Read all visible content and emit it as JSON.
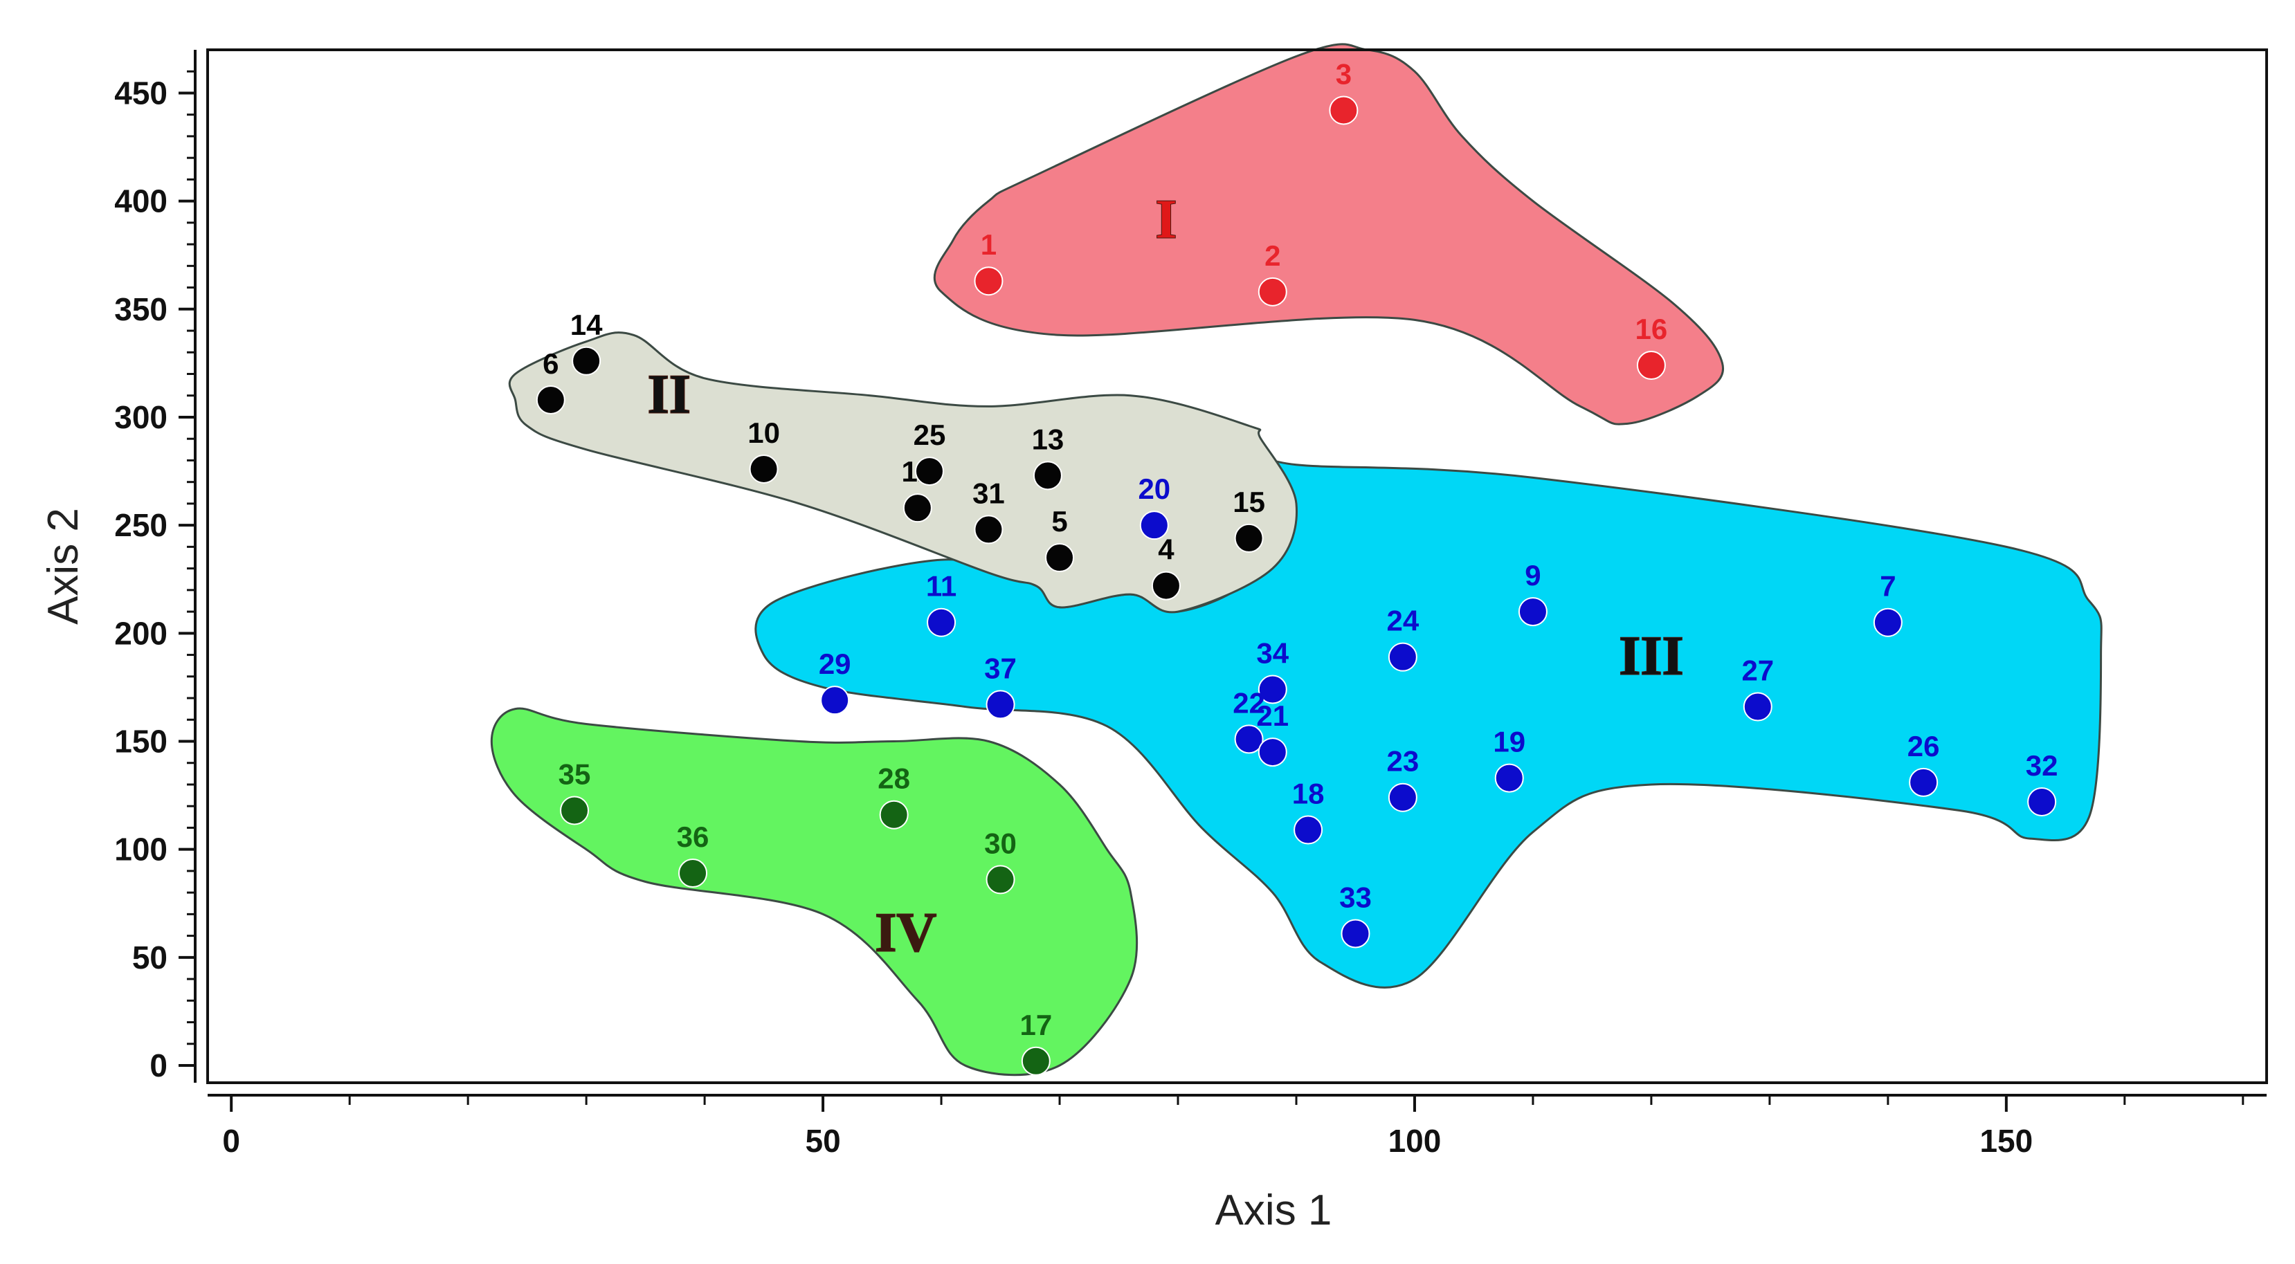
{
  "chart_data": {
    "type": "scatter",
    "title": "",
    "xlabel": "Axis 1",
    "ylabel": "Axis 2",
    "xlim": [
      -2,
      172
    ],
    "ylim": [
      -8,
      470
    ],
    "x_ticks": [
      0,
      50,
      100,
      150
    ],
    "y_ticks": [
      0,
      50,
      100,
      150,
      200,
      250,
      300,
      350,
      400,
      450
    ],
    "grid": false,
    "legend": "none",
    "clusters": [
      {
        "label": "I",
        "fill": "#f47f8a",
        "point_color": "#e8242c",
        "label_color": "#e01818",
        "label_pos": [
          79,
          392
        ],
        "hull": [
          [
            64,
            400
          ],
          [
            68,
            412
          ],
          [
            90,
            467
          ],
          [
            96,
            470
          ],
          [
            100,
            460
          ],
          [
            104,
            430
          ],
          [
            110,
            400
          ],
          [
            122,
            352
          ],
          [
            126,
            325
          ],
          [
            124,
            310
          ],
          [
            118,
            297
          ],
          [
            114,
            305
          ],
          [
            100,
            345
          ],
          [
            70,
            338
          ],
          [
            60,
            358
          ],
          [
            61,
            382
          ]
        ],
        "points": [
          {
            "id": "1",
            "x": 64,
            "y": 363
          },
          {
            "id": "2",
            "x": 88,
            "y": 358
          },
          {
            "id": "3",
            "x": 94,
            "y": 442
          },
          {
            "id": "16",
            "x": 120,
            "y": 324
          }
        ]
      },
      {
        "label": "II",
        "fill": "#dcdfd2",
        "point_color": "#050505",
        "label_color": "#111111",
        "label_pos": [
          37,
          311
        ],
        "hull": [
          [
            24,
            308
          ],
          [
            24,
            320
          ],
          [
            30,
            335
          ],
          [
            34,
            338
          ],
          [
            40,
            318
          ],
          [
            54,
            310
          ],
          [
            64,
            305
          ],
          [
            76,
            310
          ],
          [
            86,
            296
          ],
          [
            87,
            290
          ],
          [
            90,
            260
          ],
          [
            88,
            230
          ],
          [
            80,
            210
          ],
          [
            76,
            218
          ],
          [
            70,
            212
          ],
          [
            68,
            222
          ],
          [
            64,
            228
          ],
          [
            48,
            260
          ],
          [
            30,
            285
          ],
          [
            25,
            296
          ]
        ],
        "points": [
          {
            "id": "6",
            "x": 27,
            "y": 308
          },
          {
            "id": "14",
            "x": 30,
            "y": 326
          },
          {
            "id": "10",
            "x": 45,
            "y": 276
          },
          {
            "id": "12",
            "x": 58,
            "y": 258
          },
          {
            "id": "25",
            "x": 59,
            "y": 275
          },
          {
            "id": "31",
            "x": 64,
            "y": 248
          },
          {
            "id": "13",
            "x": 69,
            "y": 273
          },
          {
            "id": "5",
            "x": 70,
            "y": 235
          },
          {
            "id": "4",
            "x": 79,
            "y": 222
          },
          {
            "id": "15",
            "x": 86,
            "y": 244
          }
        ]
      },
      {
        "label": "III",
        "fill": "#00d7f6",
        "point_color": "#0c0ccc",
        "label_color": "#111111",
        "label_pos": [
          120,
          190
        ],
        "hull": [
          [
            45,
            190
          ],
          [
            46,
            215
          ],
          [
            60,
            234
          ],
          [
            68,
            222
          ],
          [
            70,
            212
          ],
          [
            76,
            218
          ],
          [
            80,
            210
          ],
          [
            86,
            225
          ],
          [
            88,
            258
          ],
          [
            86,
            285
          ],
          [
            90,
            278
          ],
          [
            110,
            272
          ],
          [
            150,
            240
          ],
          [
            157,
            215
          ],
          [
            158,
            190
          ],
          [
            157,
            115
          ],
          [
            152,
            105
          ],
          [
            146,
            118
          ],
          [
            120,
            130
          ],
          [
            110,
            108
          ],
          [
            100,
            40
          ],
          [
            92,
            48
          ],
          [
            88,
            80
          ],
          [
            82,
            110
          ],
          [
            74,
            157
          ],
          [
            62,
            166
          ],
          [
            50,
            175
          ]
        ],
        "points": [
          {
            "id": "20",
            "x": 78,
            "y": 250
          },
          {
            "id": "11",
            "x": 60,
            "y": 205
          },
          {
            "id": "29",
            "x": 51,
            "y": 169
          },
          {
            "id": "37",
            "x": 65,
            "y": 167
          },
          {
            "id": "34",
            "x": 88,
            "y": 174
          },
          {
            "id": "22",
            "x": 86,
            "y": 151
          },
          {
            "id": "21",
            "x": 88,
            "y": 145
          },
          {
            "id": "24",
            "x": 99,
            "y": 189
          },
          {
            "id": "9",
            "x": 110,
            "y": 210
          },
          {
            "id": "23",
            "x": 99,
            "y": 124
          },
          {
            "id": "18",
            "x": 91,
            "y": 109
          },
          {
            "id": "19",
            "x": 108,
            "y": 133
          },
          {
            "id": "33",
            "x": 95,
            "y": 61
          },
          {
            "id": "7",
            "x": 140,
            "y": 205
          },
          {
            "id": "27",
            "x": 129,
            "y": 166
          },
          {
            "id": "26",
            "x": 143,
            "y": 131
          },
          {
            "id": "32",
            "x": 153,
            "y": 122
          }
        ]
      },
      {
        "label": "IV",
        "fill": "#63f460",
        "point_color": "#146414",
        "label_color": "#3a1a10",
        "label_pos": [
          57,
          62
        ],
        "hull": [
          [
            22,
            150
          ],
          [
            24,
            165
          ],
          [
            30,
            158
          ],
          [
            48,
            150
          ],
          [
            56,
            150
          ],
          [
            64,
            150
          ],
          [
            70,
            130
          ],
          [
            74,
            100
          ],
          [
            76,
            80
          ],
          [
            76,
            40
          ],
          [
            70,
            0
          ],
          [
            62,
            0
          ],
          [
            58,
            30
          ],
          [
            50,
            70
          ],
          [
            35,
            85
          ],
          [
            30,
            100
          ],
          [
            24,
            125
          ]
        ],
        "points": [
          {
            "id": "35",
            "x": 29,
            "y": 118
          },
          {
            "id": "36",
            "x": 39,
            "y": 89
          },
          {
            "id": "28",
            "x": 56,
            "y": 116
          },
          {
            "id": "30",
            "x": 65,
            "y": 86
          },
          {
            "id": "17",
            "x": 68,
            "y": 2
          }
        ]
      }
    ]
  }
}
